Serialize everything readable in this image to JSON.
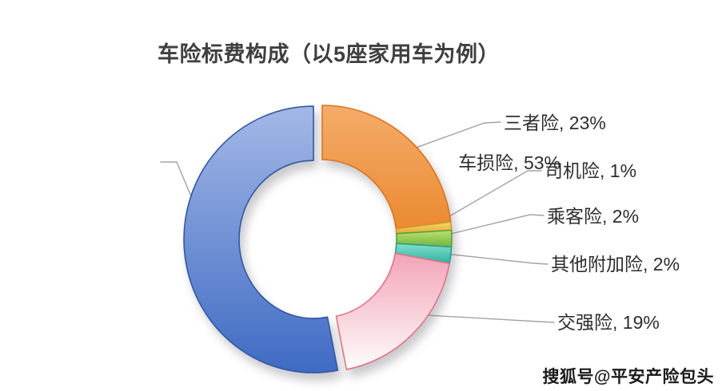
{
  "page": {
    "background": "#ffffff"
  },
  "header": {
    "title": "车险标费构成（以5座家用车为例）",
    "title_color": "#3f3f3f"
  },
  "watermark": {
    "text": "搜狐号@平安产险包头",
    "color": "#1b1b1b"
  },
  "chart_data": {
    "type": "pie",
    "subtype": "donut",
    "title": "车险标费构成（以5座家用车为例）",
    "unit": "%",
    "direction": "clockwise",
    "start_angle_deg": 0,
    "legend_position": "none",
    "label_style": "callout-with-leader-lines",
    "total_percent": 100,
    "categories": [
      "三者险",
      "司机险",
      "乘客险",
      "其他附加险",
      "交强险",
      "车损险"
    ],
    "values": [
      23,
      1,
      2,
      2,
      19,
      53
    ],
    "segments": [
      {
        "name": "三者险",
        "value": 23,
        "label": "三者险, 23%",
        "fill_top": "#F4AC69",
        "fill_bottom": "#EB8A31",
        "border": "#DB7423",
        "exploded": false
      },
      {
        "name": "司机险",
        "value": 1,
        "label": "司机险, 1%",
        "fill_top": "#F7DA5F",
        "fill_bottom": "#E5A83C",
        "border": "#CE962D",
        "exploded": false
      },
      {
        "name": "乘客险",
        "value": 2,
        "label": "乘客险, 2%",
        "fill_top": "#BCDF70",
        "fill_bottom": "#6FB73F",
        "border": "#59A133",
        "exploded": false
      },
      {
        "name": "其他附加险",
        "value": 2,
        "label": "其他附加险, 2%",
        "fill_top": "#84DECC",
        "fill_bottom": "#2EB2A0",
        "border": "#27A08C",
        "exploded": false
      },
      {
        "name": "交强险",
        "value": 19,
        "label": "交强险, 19%",
        "fill_top": "#F2A4B7",
        "fill_bottom": "#FEFCFC",
        "border": "#E2738A",
        "exploded": false
      },
      {
        "name": "车损险",
        "value": 53,
        "label": "车损险, 53%",
        "fill_top": "#A3B8E6",
        "fill_bottom": "#3F6BC4",
        "border": "#33589E",
        "exploded": true
      }
    ],
    "leader_line_color": "#a3a3a3",
    "label_text_color": "#2e2e2e"
  }
}
